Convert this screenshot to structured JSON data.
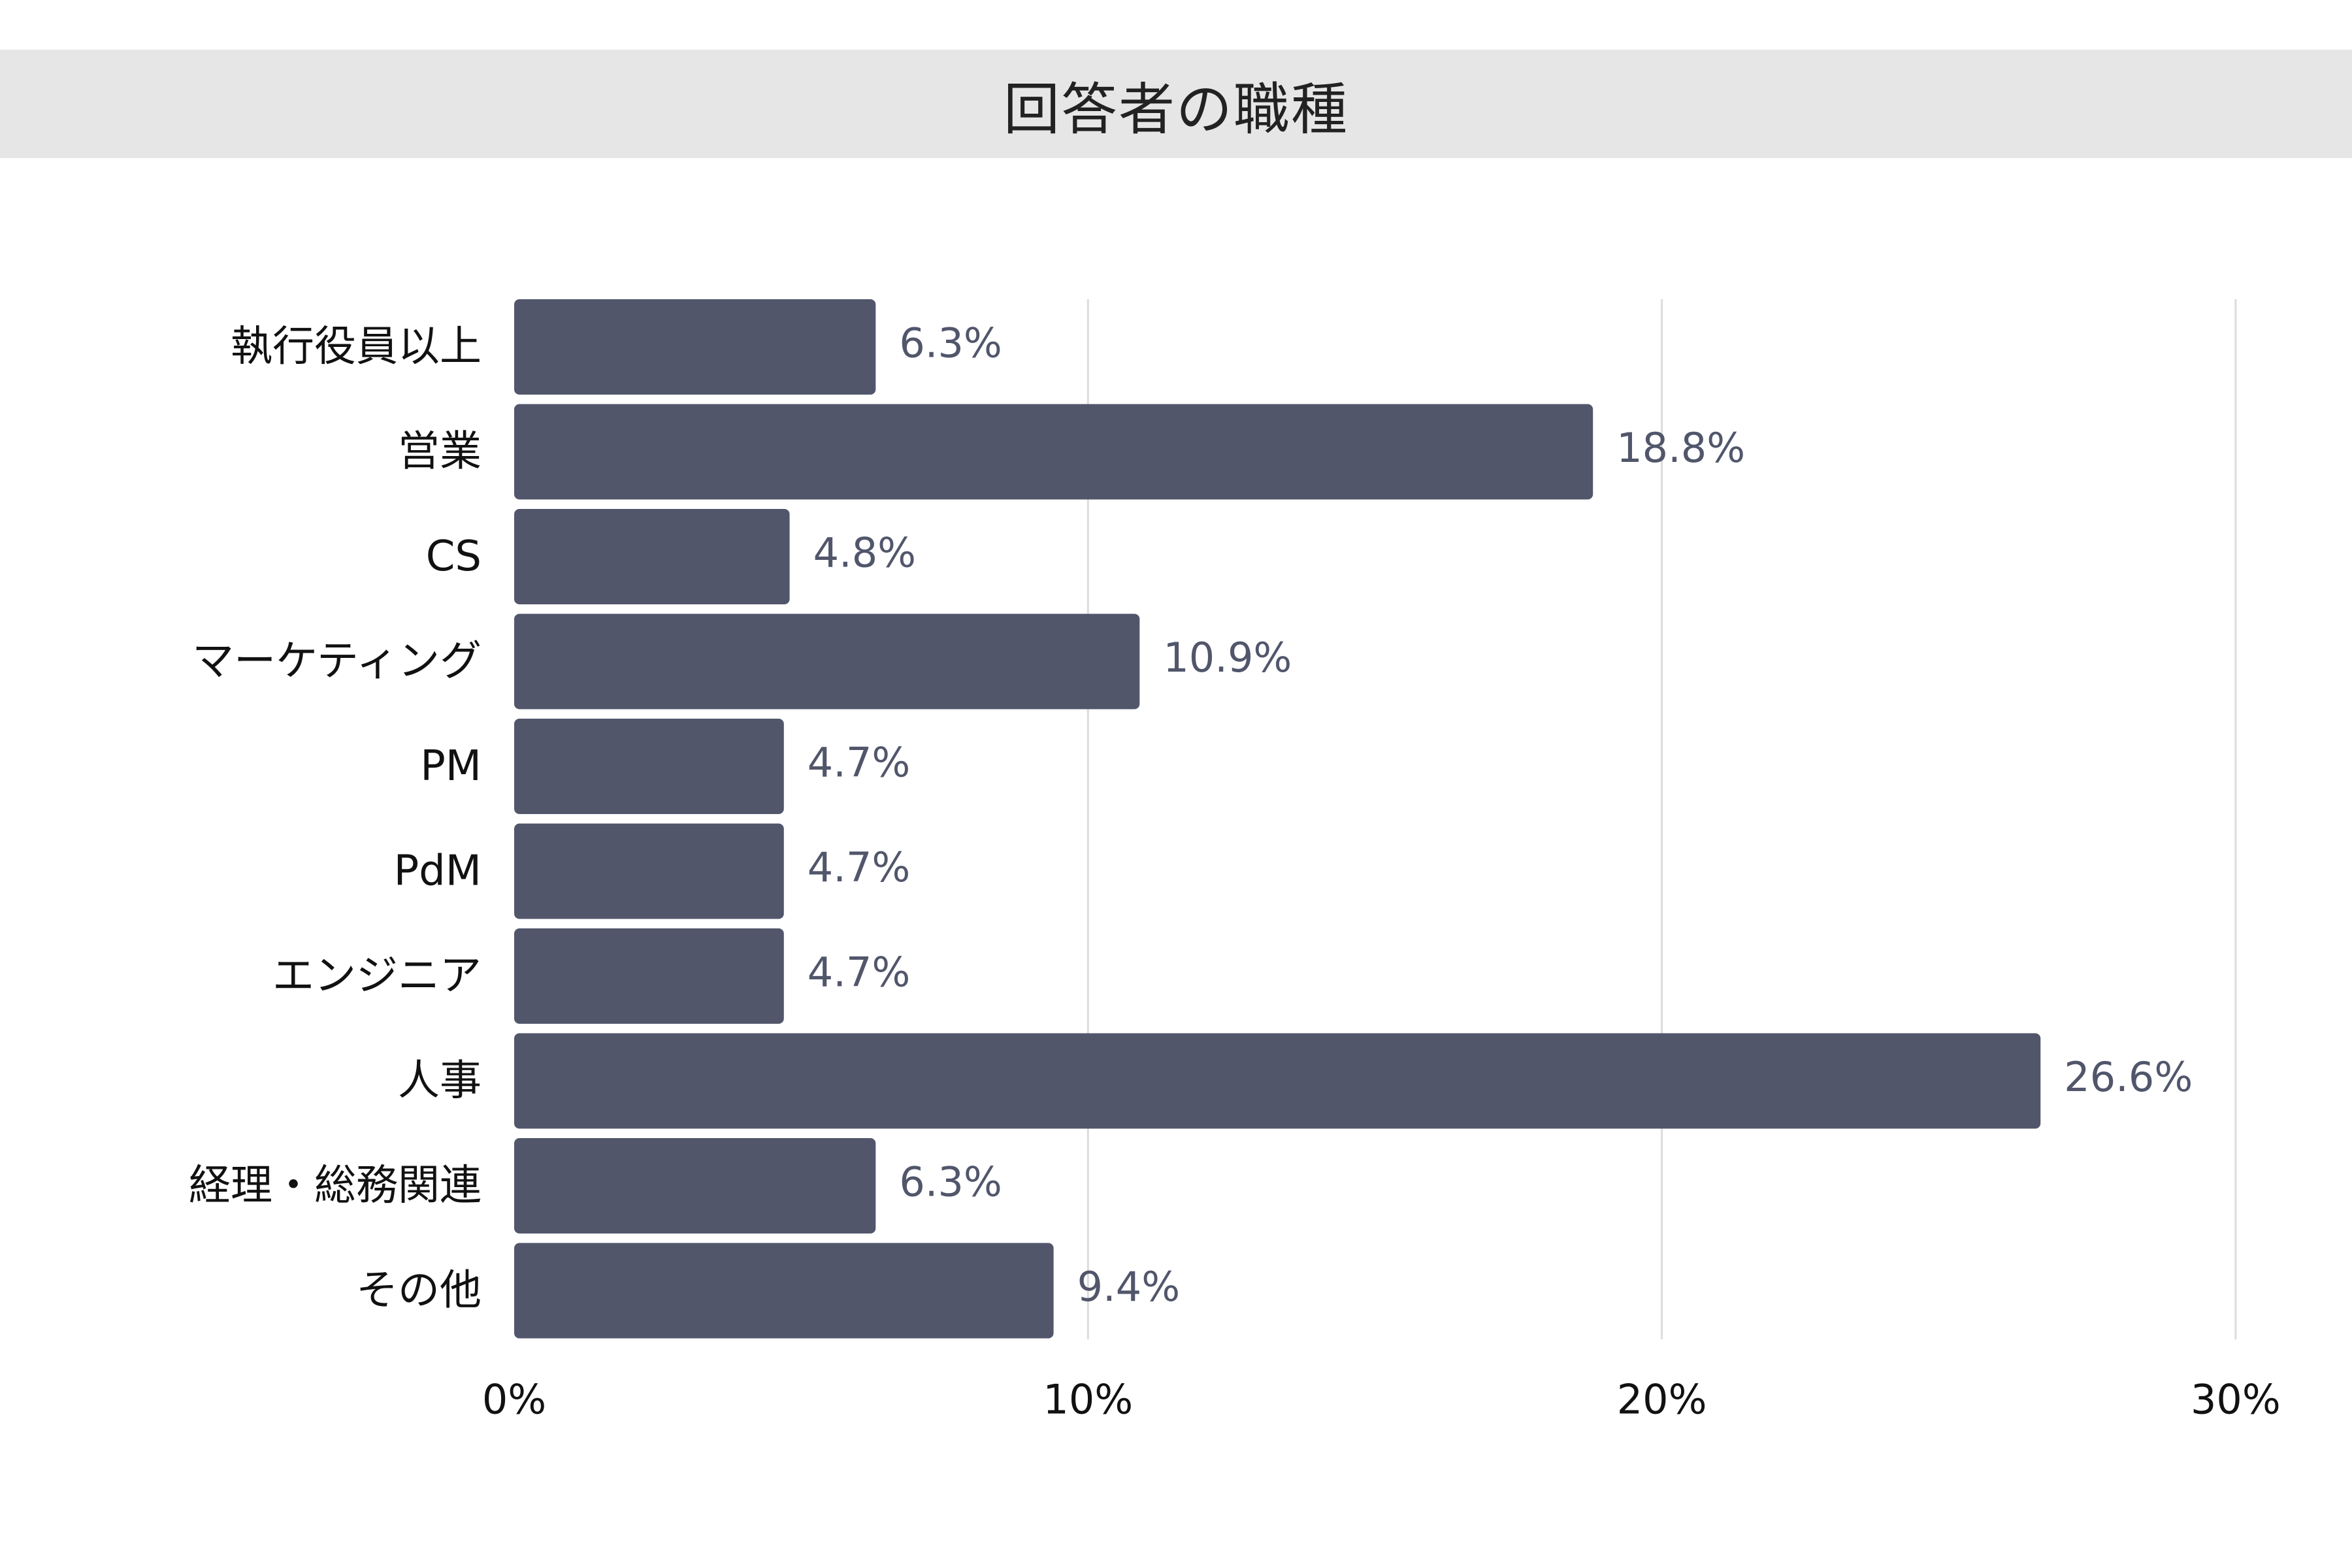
{
  "title": "回答者の職種",
  "colors": {
    "bar": "#51566b",
    "value_label": "#51566b",
    "grid": "#dcdcdc",
    "title_bar": "#e6e6e6"
  },
  "chart_data": {
    "type": "bar",
    "orientation": "horizontal",
    "title": "回答者の職種",
    "categories": [
      "執行役員以上",
      "営業",
      "CS",
      "マーケティング",
      "PM",
      "PdM",
      "エンジニア",
      "人事",
      "経理・総務関連",
      "その他"
    ],
    "values": [
      6.3,
      18.8,
      4.8,
      10.9,
      4.7,
      4.7,
      4.7,
      26.6,
      6.3,
      9.4
    ],
    "value_labels": [
      "6.3%",
      "18.8%",
      "4.8%",
      "10.9%",
      "4.7%",
      "4.7%",
      "4.7%",
      "26.6%",
      "6.3%",
      "9.4%"
    ],
    "xlim": [
      0,
      30
    ],
    "x_ticks": [
      0,
      10,
      20,
      30
    ],
    "x_tick_labels": [
      "0%",
      "10%",
      "20%",
      "30%"
    ],
    "xlabel": "",
    "ylabel": "",
    "grid": true
  }
}
